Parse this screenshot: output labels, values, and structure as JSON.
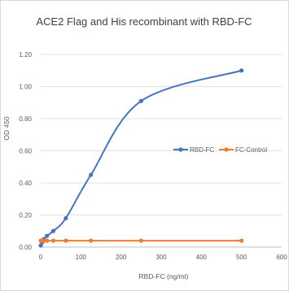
{
  "chart_data": {
    "type": "line",
    "title": "ACE2 Flag and His recombinant with RBD-FC",
    "xlabel": "RBD-FC (ng/ml)",
    "ylabel": "OD 450",
    "xlim": [
      0,
      600
    ],
    "ylim": [
      0,
      1.2
    ],
    "x_ticks": [
      "0",
      "100",
      "200",
      "300",
      "400",
      "500",
      "600"
    ],
    "y_ticks": [
      "0.00",
      "0.20",
      "0.40",
      "0.60",
      "0.80",
      "1.00",
      "1.20"
    ],
    "grid": true,
    "legend_position": "right",
    "series": [
      {
        "name": "RBD-FC",
        "color": "#4472c4",
        "x": [
          0,
          3.9,
          7.8,
          15.6,
          31.25,
          62.5,
          125,
          250,
          500
        ],
        "y": [
          0.01,
          0.03,
          0.05,
          0.07,
          0.1,
          0.18,
          0.45,
          0.91,
          1.1
        ]
      },
      {
        "name": "FC-Control",
        "color": "#ed7d31",
        "x": [
          0,
          3.9,
          7.8,
          15.6,
          31.25,
          62.5,
          125,
          250,
          500
        ],
        "y": [
          0.04,
          0.04,
          0.04,
          0.04,
          0.04,
          0.04,
          0.04,
          0.04,
          0.04
        ]
      }
    ]
  }
}
